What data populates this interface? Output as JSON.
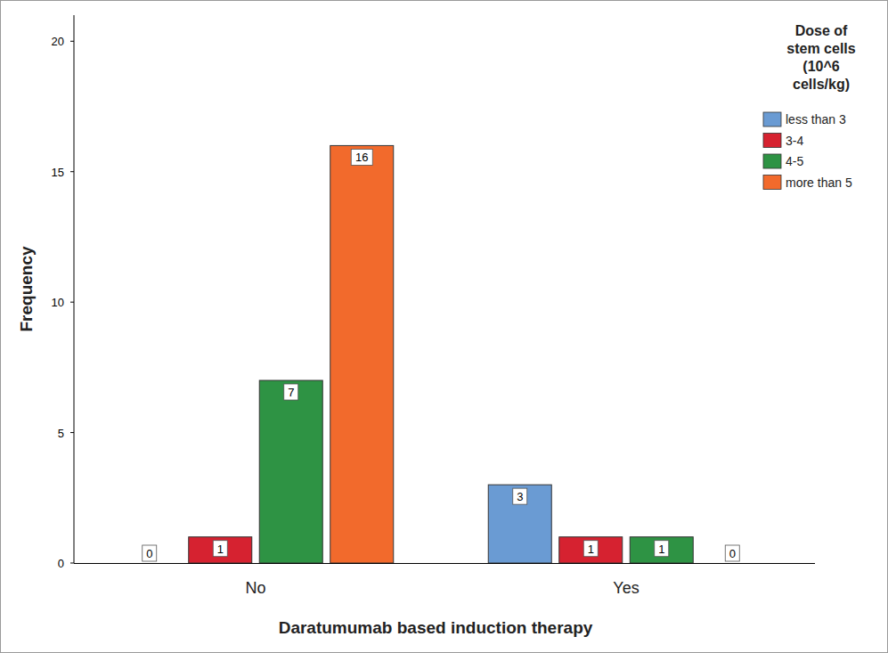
{
  "chart_data": {
    "type": "bar",
    "x_label": "Daratumumab based induction therapy",
    "y_label": "Frequency",
    "legend_title": "Dose of stem cells (10^6 cells/kg)",
    "categories": [
      "No",
      "Yes"
    ],
    "series": [
      {
        "name": "less than 3",
        "color": "#6a9bd3",
        "values": [
          0,
          3
        ]
      },
      {
        "name": "3-4",
        "color": "#d62230",
        "values": [
          1,
          1
        ]
      },
      {
        "name": "4-5",
        "color": "#2e9344",
        "values": [
          7,
          1
        ]
      },
      {
        "name": "more than 5",
        "color": "#f26a2c",
        "values": [
          16,
          0
        ]
      }
    ],
    "ylim": [
      0,
      21
    ],
    "yticks": [
      0,
      5,
      10,
      15,
      20
    ],
    "grid": false,
    "legend": "top-right",
    "data_labels": true
  }
}
